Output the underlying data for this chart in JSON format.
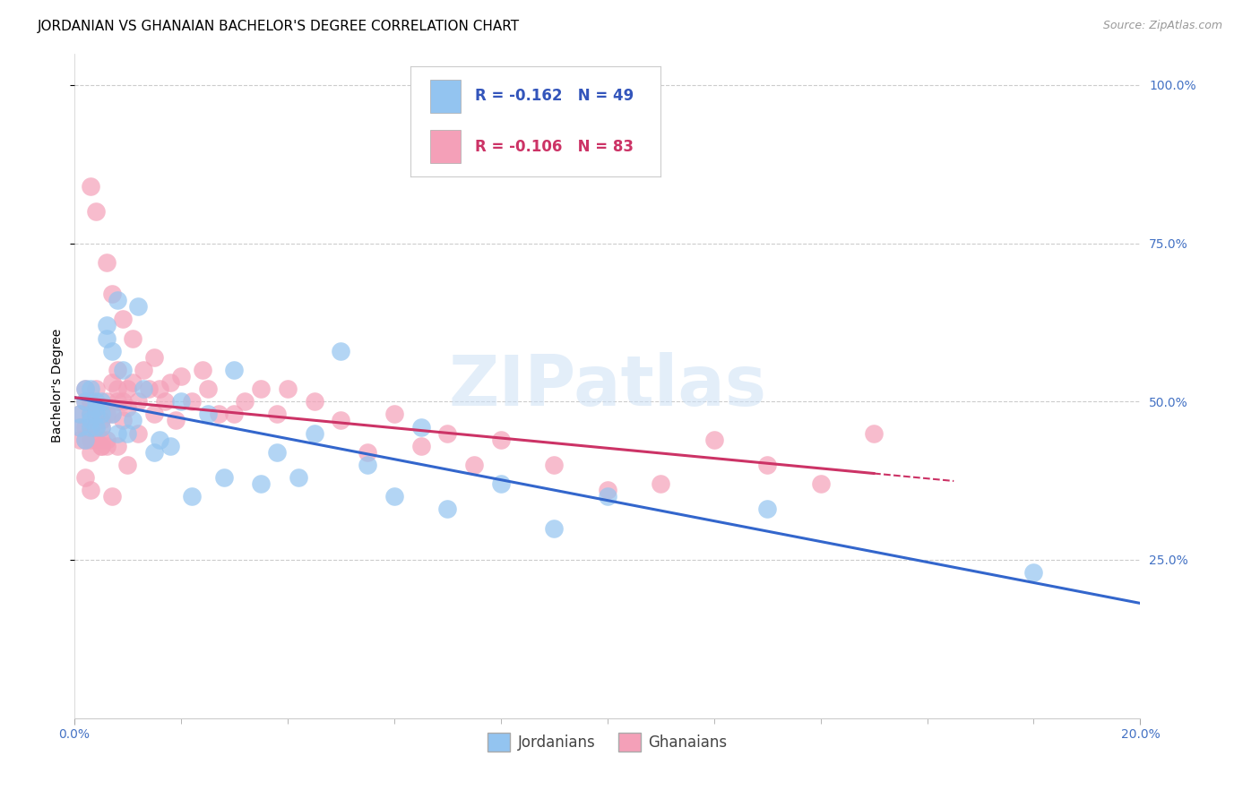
{
  "title": "JORDANIAN VS GHANAIAN BACHELOR'S DEGREE CORRELATION CHART",
  "source": "Source: ZipAtlas.com",
  "ylabel": "Bachelor's Degree",
  "legend_jordan": {
    "R": -0.162,
    "N": 49,
    "label": "Jordanians"
  },
  "legend_ghana": {
    "R": -0.106,
    "N": 83,
    "label": "Ghanaians"
  },
  "right_yticks": [
    "100.0%",
    "75.0%",
    "50.0%",
    "25.0%"
  ],
  "right_ytick_vals": [
    1.0,
    0.75,
    0.5,
    0.25
  ],
  "jordan_color": "#93c4f0",
  "ghana_color": "#f4a0b8",
  "jordan_line_color": "#3366cc",
  "ghana_line_color": "#cc3366",
  "background_color": "#ffffff",
  "grid_color": "#cccccc",
  "jordan_x": [
    0.001,
    0.001,
    0.002,
    0.002,
    0.002,
    0.003,
    0.003,
    0.003,
    0.003,
    0.004,
    0.004,
    0.004,
    0.004,
    0.005,
    0.005,
    0.005,
    0.006,
    0.006,
    0.007,
    0.007,
    0.008,
    0.008,
    0.009,
    0.01,
    0.011,
    0.012,
    0.013,
    0.015,
    0.016,
    0.018,
    0.02,
    0.022,
    0.025,
    0.028,
    0.03,
    0.035,
    0.038,
    0.042,
    0.045,
    0.05,
    0.055,
    0.06,
    0.065,
    0.07,
    0.08,
    0.09,
    0.1,
    0.13,
    0.18
  ],
  "jordan_y": [
    0.46,
    0.48,
    0.5,
    0.52,
    0.44,
    0.47,
    0.48,
    0.46,
    0.52,
    0.49,
    0.5,
    0.48,
    0.46,
    0.48,
    0.46,
    0.5,
    0.62,
    0.6,
    0.58,
    0.48,
    0.66,
    0.45,
    0.55,
    0.45,
    0.47,
    0.65,
    0.52,
    0.42,
    0.44,
    0.43,
    0.5,
    0.35,
    0.48,
    0.38,
    0.55,
    0.37,
    0.42,
    0.38,
    0.45,
    0.58,
    0.4,
    0.35,
    0.46,
    0.33,
    0.37,
    0.3,
    0.35,
    0.33,
    0.23
  ],
  "ghana_x": [
    0.001,
    0.001,
    0.001,
    0.002,
    0.002,
    0.002,
    0.002,
    0.003,
    0.003,
    0.003,
    0.003,
    0.003,
    0.003,
    0.004,
    0.004,
    0.004,
    0.004,
    0.004,
    0.005,
    0.005,
    0.005,
    0.005,
    0.006,
    0.006,
    0.006,
    0.006,
    0.007,
    0.007,
    0.007,
    0.008,
    0.008,
    0.008,
    0.009,
    0.009,
    0.009,
    0.01,
    0.01,
    0.011,
    0.011,
    0.012,
    0.012,
    0.013,
    0.014,
    0.015,
    0.015,
    0.016,
    0.017,
    0.018,
    0.019,
    0.02,
    0.022,
    0.024,
    0.025,
    0.027,
    0.03,
    0.032,
    0.035,
    0.038,
    0.04,
    0.045,
    0.05,
    0.055,
    0.06,
    0.065,
    0.07,
    0.075,
    0.08,
    0.09,
    0.1,
    0.11,
    0.12,
    0.13,
    0.14,
    0.15,
    0.003,
    0.004,
    0.005,
    0.006,
    0.008,
    0.01,
    0.002,
    0.003,
    0.007
  ],
  "ghana_y": [
    0.44,
    0.46,
    0.48,
    0.5,
    0.52,
    0.44,
    0.46,
    0.84,
    0.48,
    0.5,
    0.46,
    0.44,
    0.42,
    0.52,
    0.48,
    0.46,
    0.44,
    0.8,
    0.47,
    0.46,
    0.44,
    0.43,
    0.5,
    0.48,
    0.44,
    0.72,
    0.53,
    0.48,
    0.67,
    0.55,
    0.52,
    0.5,
    0.5,
    0.47,
    0.63,
    0.52,
    0.49,
    0.53,
    0.6,
    0.45,
    0.5,
    0.55,
    0.52,
    0.48,
    0.57,
    0.52,
    0.5,
    0.53,
    0.47,
    0.54,
    0.5,
    0.55,
    0.52,
    0.48,
    0.48,
    0.5,
    0.52,
    0.48,
    0.52,
    0.5,
    0.47,
    0.42,
    0.48,
    0.43,
    0.45,
    0.4,
    0.44,
    0.4,
    0.36,
    0.37,
    0.44,
    0.4,
    0.37,
    0.45,
    0.5,
    0.48,
    0.43,
    0.43,
    0.43,
    0.4,
    0.38,
    0.36,
    0.35
  ],
  "xlim": [
    0.0,
    0.2
  ],
  "ylim": [
    0.0,
    1.05
  ],
  "xtick_minor_count": 9,
  "title_fontsize": 11,
  "source_fontsize": 9,
  "axis_label_fontsize": 10,
  "tick_fontsize": 10,
  "legend_fontsize": 12
}
